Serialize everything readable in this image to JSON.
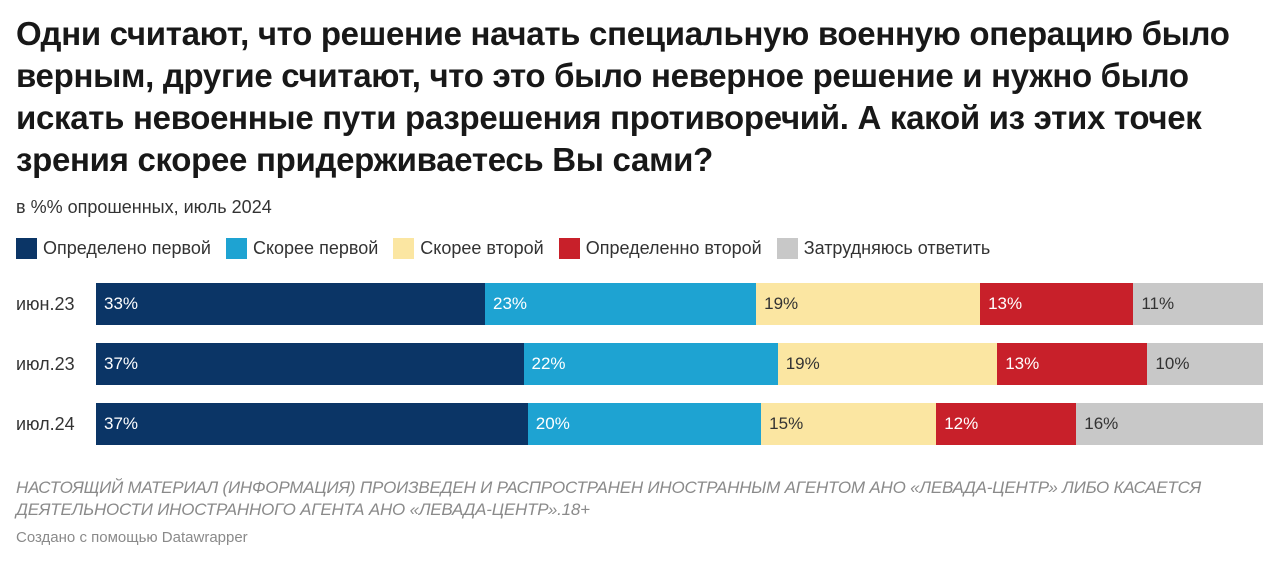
{
  "header": {
    "title": "Одни считают, что решение начать специальную военную операцию было верным, другие считают, что это было неверное решение и нужно было искать невоенные пути разрешения противоречий. А какой из этих точек зрения скорее придерживаетесь Вы сами?",
    "subtitle": "в %% опрошенных, июль 2024"
  },
  "chart_data": {
    "type": "bar",
    "orientation": "horizontal",
    "stacked": true,
    "title": "Одни считают, что решение начать специальную военную операцию было верным, другие считают, что это было неверное решение и нужно было искать невоенные пути разрешения противоречий. А какой из этих точек зрения скорее придерживаетесь Вы сами?",
    "subtitle": "в %% опрошенных, июль 2024",
    "categories": [
      "июн.23",
      "июл.23",
      "июл.24"
    ],
    "legend_position": "top",
    "series": [
      {
        "name": "Определено первой",
        "color": "#0b3566",
        "text_color": "#ffffff",
        "values": [
          33,
          37,
          37
        ]
      },
      {
        "name": "Скорее первой",
        "color": "#1ea3d2",
        "text_color": "#ffffff",
        "values": [
          23,
          22,
          20
        ]
      },
      {
        "name": "Скорее второй",
        "color": "#fbe6a2",
        "text_color": "#333333",
        "values": [
          19,
          19,
          15
        ]
      },
      {
        "name": "Определенно второй",
        "color": "#c8202a",
        "text_color": "#ffffff",
        "values": [
          13,
          13,
          12
        ]
      },
      {
        "name": "Затрудняюсь ответить",
        "color": "#c8c8c8",
        "text_color": "#333333",
        "values": [
          11,
          10,
          16
        ]
      }
    ],
    "value_suffix": "%"
  },
  "footer": {
    "notes": "НАСТОЯЩИЙ МАТЕРИАЛ (ИНФОРМАЦИЯ) ПРОИЗВЕДЕН И РАСПРОСТРАНЕН ИНОСТРАННЫМ АГЕНТОМ АНО «ЛЕВАДА-ЦЕНТР» ЛИБО КАСАЕТСЯ ДЕЯТЕЛЬНОСТИ ИНОСТРАННОГО АГЕНТА АНО «ЛЕВАДА-ЦЕНТР».18+",
    "credit": "Создано с помощью Datawrapper"
  }
}
